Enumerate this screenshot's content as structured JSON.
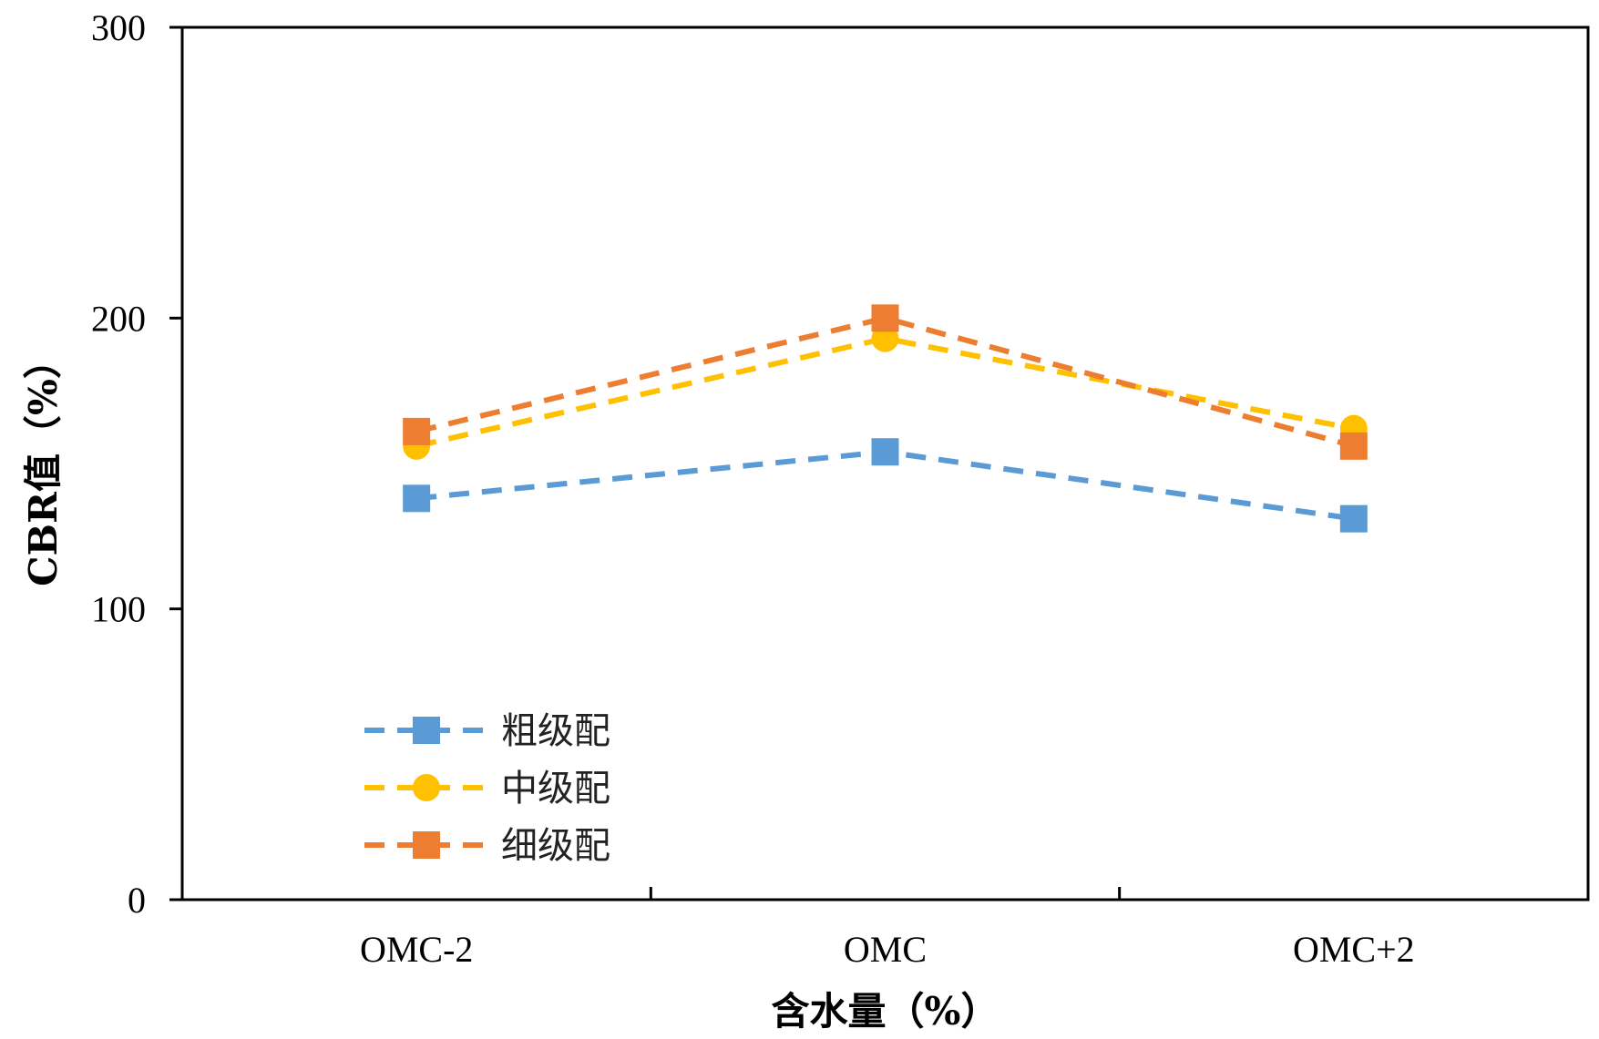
{
  "chart_data": {
    "type": "line",
    "title": "",
    "xlabel": "含水量（%）",
    "ylabel": "CBR值（%）",
    "categories": [
      "OMC-2",
      "OMC",
      "OMC+2"
    ],
    "ylim": [
      0,
      300
    ],
    "yticks": [
      0,
      100,
      200,
      300
    ],
    "grid": false,
    "legend_position": "bottom-left",
    "series": [
      {
        "name": "粗级配",
        "values": [
          138,
          154,
          131
        ],
        "color": "#5B9BD5",
        "marker": "square",
        "line_style": "dashed"
      },
      {
        "name": "中级配",
        "values": [
          156,
          193,
          162
        ],
        "color": "#FFC000",
        "marker": "circle",
        "line_style": "dashed"
      },
      {
        "name": "细级配",
        "values": [
          161,
          200,
          156
        ],
        "color": "#ED7D31",
        "marker": "square",
        "line_style": "dashed"
      }
    ]
  }
}
